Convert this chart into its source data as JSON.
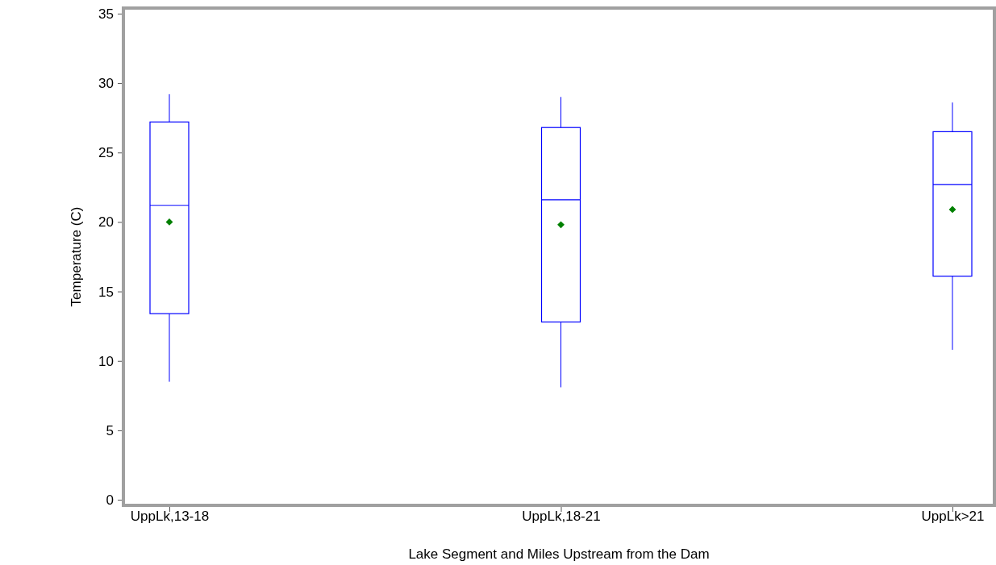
{
  "chart_data": {
    "type": "box",
    "xlabel": "Lake Segment and Miles Upstream from the Dam",
    "ylabel": "Temperature (C)",
    "categories": [
      "UppLk,13-18",
      "UppLk,18-21",
      "UppLk>21"
    ],
    "ylim": [
      -0.4,
      35.4
    ],
    "yticks": [
      0,
      5,
      10,
      15,
      20,
      25,
      30,
      35
    ],
    "grid": false,
    "series": [
      {
        "color": "#0000ff",
        "boxes": [
          {
            "low": 8.5,
            "q1": 13.4,
            "median": 21.2,
            "q3": 27.2,
            "high": 29.2,
            "mean": 20.0
          },
          {
            "low": 8.1,
            "q1": 12.8,
            "median": 21.6,
            "q3": 26.8,
            "high": 29.0,
            "mean": 19.8
          },
          {
            "low": 10.8,
            "q1": 16.1,
            "median": 22.7,
            "q3": 26.5,
            "high": 28.6,
            "mean": 20.9
          }
        ]
      }
    ]
  }
}
